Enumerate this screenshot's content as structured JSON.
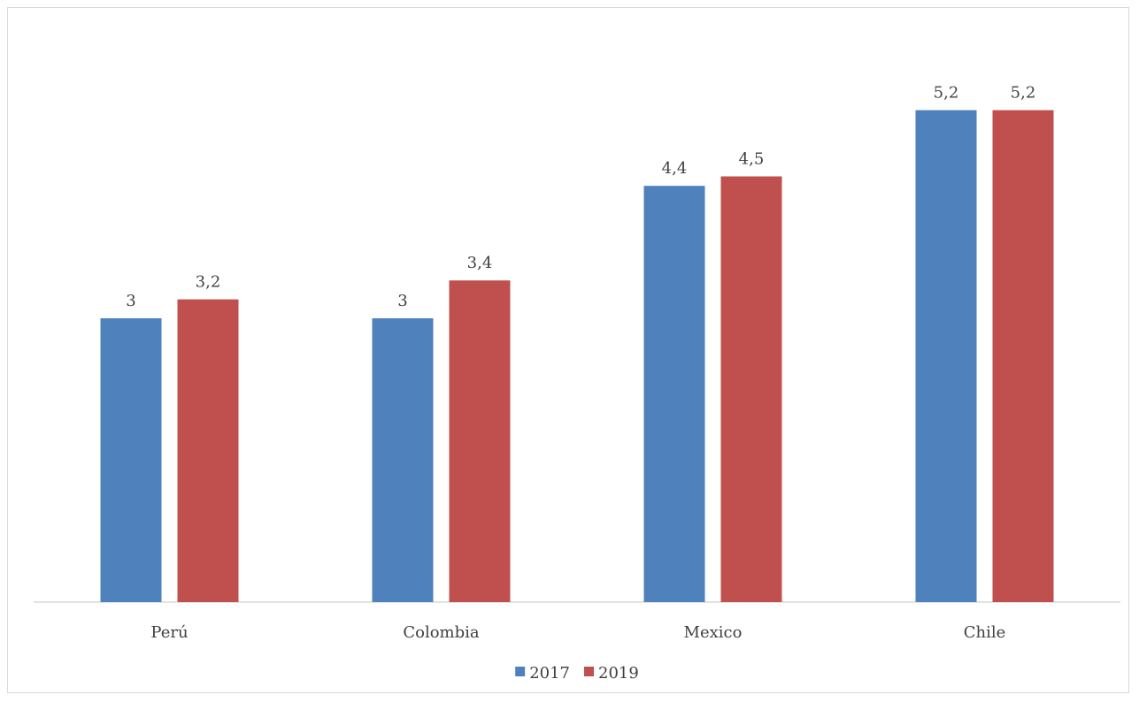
{
  "chart_data": {
    "type": "bar",
    "title": "",
    "xlabel": "",
    "ylabel": "",
    "categories": [
      "Perú",
      "Colombia",
      "Mexico",
      "Chile"
    ],
    "series": [
      {
        "name": "2017",
        "values": [
          3,
          3,
          4.4,
          5.2
        ],
        "labels": [
          "3",
          "3",
          "4,4",
          "5,2"
        ],
        "color": "#4F81BD"
      },
      {
        "name": "2019",
        "values": [
          3.2,
          3.4,
          4.5,
          5.2
        ],
        "labels": [
          "3,2",
          "3,4",
          "4,5",
          "5,2"
        ],
        "color": "#C0504D"
      }
    ],
    "ylim": [
      0,
      5.8
    ],
    "grid": false,
    "data_labels": true,
    "legend_position": "bottom",
    "axis_color": "#d9d9d9"
  }
}
